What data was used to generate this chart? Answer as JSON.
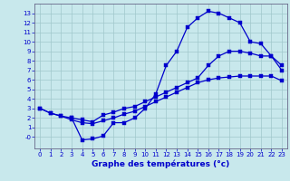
{
  "xlabel": "Graphe des températures (°c)",
  "bg_color": "#c8e8ec",
  "grid_color": "#a0c8cc",
  "line_color": "#0000cc",
  "axis_color": "#666688",
  "xlim": [
    -0.5,
    23.5
  ],
  "ylim": [
    -1.2,
    14.0
  ],
  "xticks": [
    0,
    1,
    2,
    3,
    4,
    5,
    6,
    7,
    8,
    9,
    10,
    11,
    12,
    13,
    14,
    15,
    16,
    17,
    18,
    19,
    20,
    21,
    22,
    23
  ],
  "yticks": [
    0,
    1,
    2,
    3,
    4,
    5,
    6,
    7,
    8,
    9,
    10,
    11,
    12,
    13
  ],
  "ytick_labels": [
    "-0",
    "1",
    "2",
    "3",
    "4",
    "5",
    "6",
    "7",
    "8",
    "9",
    "10",
    "11",
    "12",
    "13"
  ],
  "curve_main_x": [
    3,
    4,
    5,
    6,
    7,
    8,
    9,
    10,
    11,
    12,
    13,
    14,
    15,
    16,
    17,
    18,
    19,
    20,
    21,
    22,
    23
  ],
  "curve_main_y": [
    2.0,
    -0.3,
    -0.2,
    0.1,
    1.5,
    1.5,
    2.0,
    3.0,
    4.5,
    7.5,
    9.0,
    11.5,
    12.5,
    13.2,
    13.0,
    12.5,
    12.0,
    10.0,
    9.8,
    8.5,
    7.0
  ],
  "curve_mid_x": [
    0,
    1,
    2,
    3,
    4,
    5,
    6,
    7,
    8,
    9,
    10,
    11,
    12,
    13,
    14,
    15,
    16,
    17,
    18,
    19,
    20,
    21,
    22,
    23
  ],
  "curve_mid_y": [
    3.0,
    2.5,
    2.2,
    2.0,
    1.8,
    1.6,
    2.3,
    2.6,
    3.0,
    3.2,
    3.7,
    4.2,
    4.7,
    5.2,
    5.7,
    6.2,
    7.5,
    8.5,
    9.0,
    9.0,
    8.8,
    8.5,
    8.5,
    7.5
  ],
  "curve_low_x": [
    0,
    1,
    2,
    3,
    4,
    5,
    6,
    7,
    8,
    9,
    10,
    11,
    12,
    13,
    14,
    15,
    16,
    17,
    18,
    19,
    20,
    21,
    22,
    23
  ],
  "curve_low_y": [
    3.0,
    2.5,
    2.2,
    1.8,
    1.5,
    1.4,
    1.7,
    2.0,
    2.4,
    2.7,
    3.2,
    3.7,
    4.2,
    4.7,
    5.2,
    5.7,
    6.0,
    6.2,
    6.3,
    6.4,
    6.4,
    6.4,
    6.4,
    5.9
  ]
}
